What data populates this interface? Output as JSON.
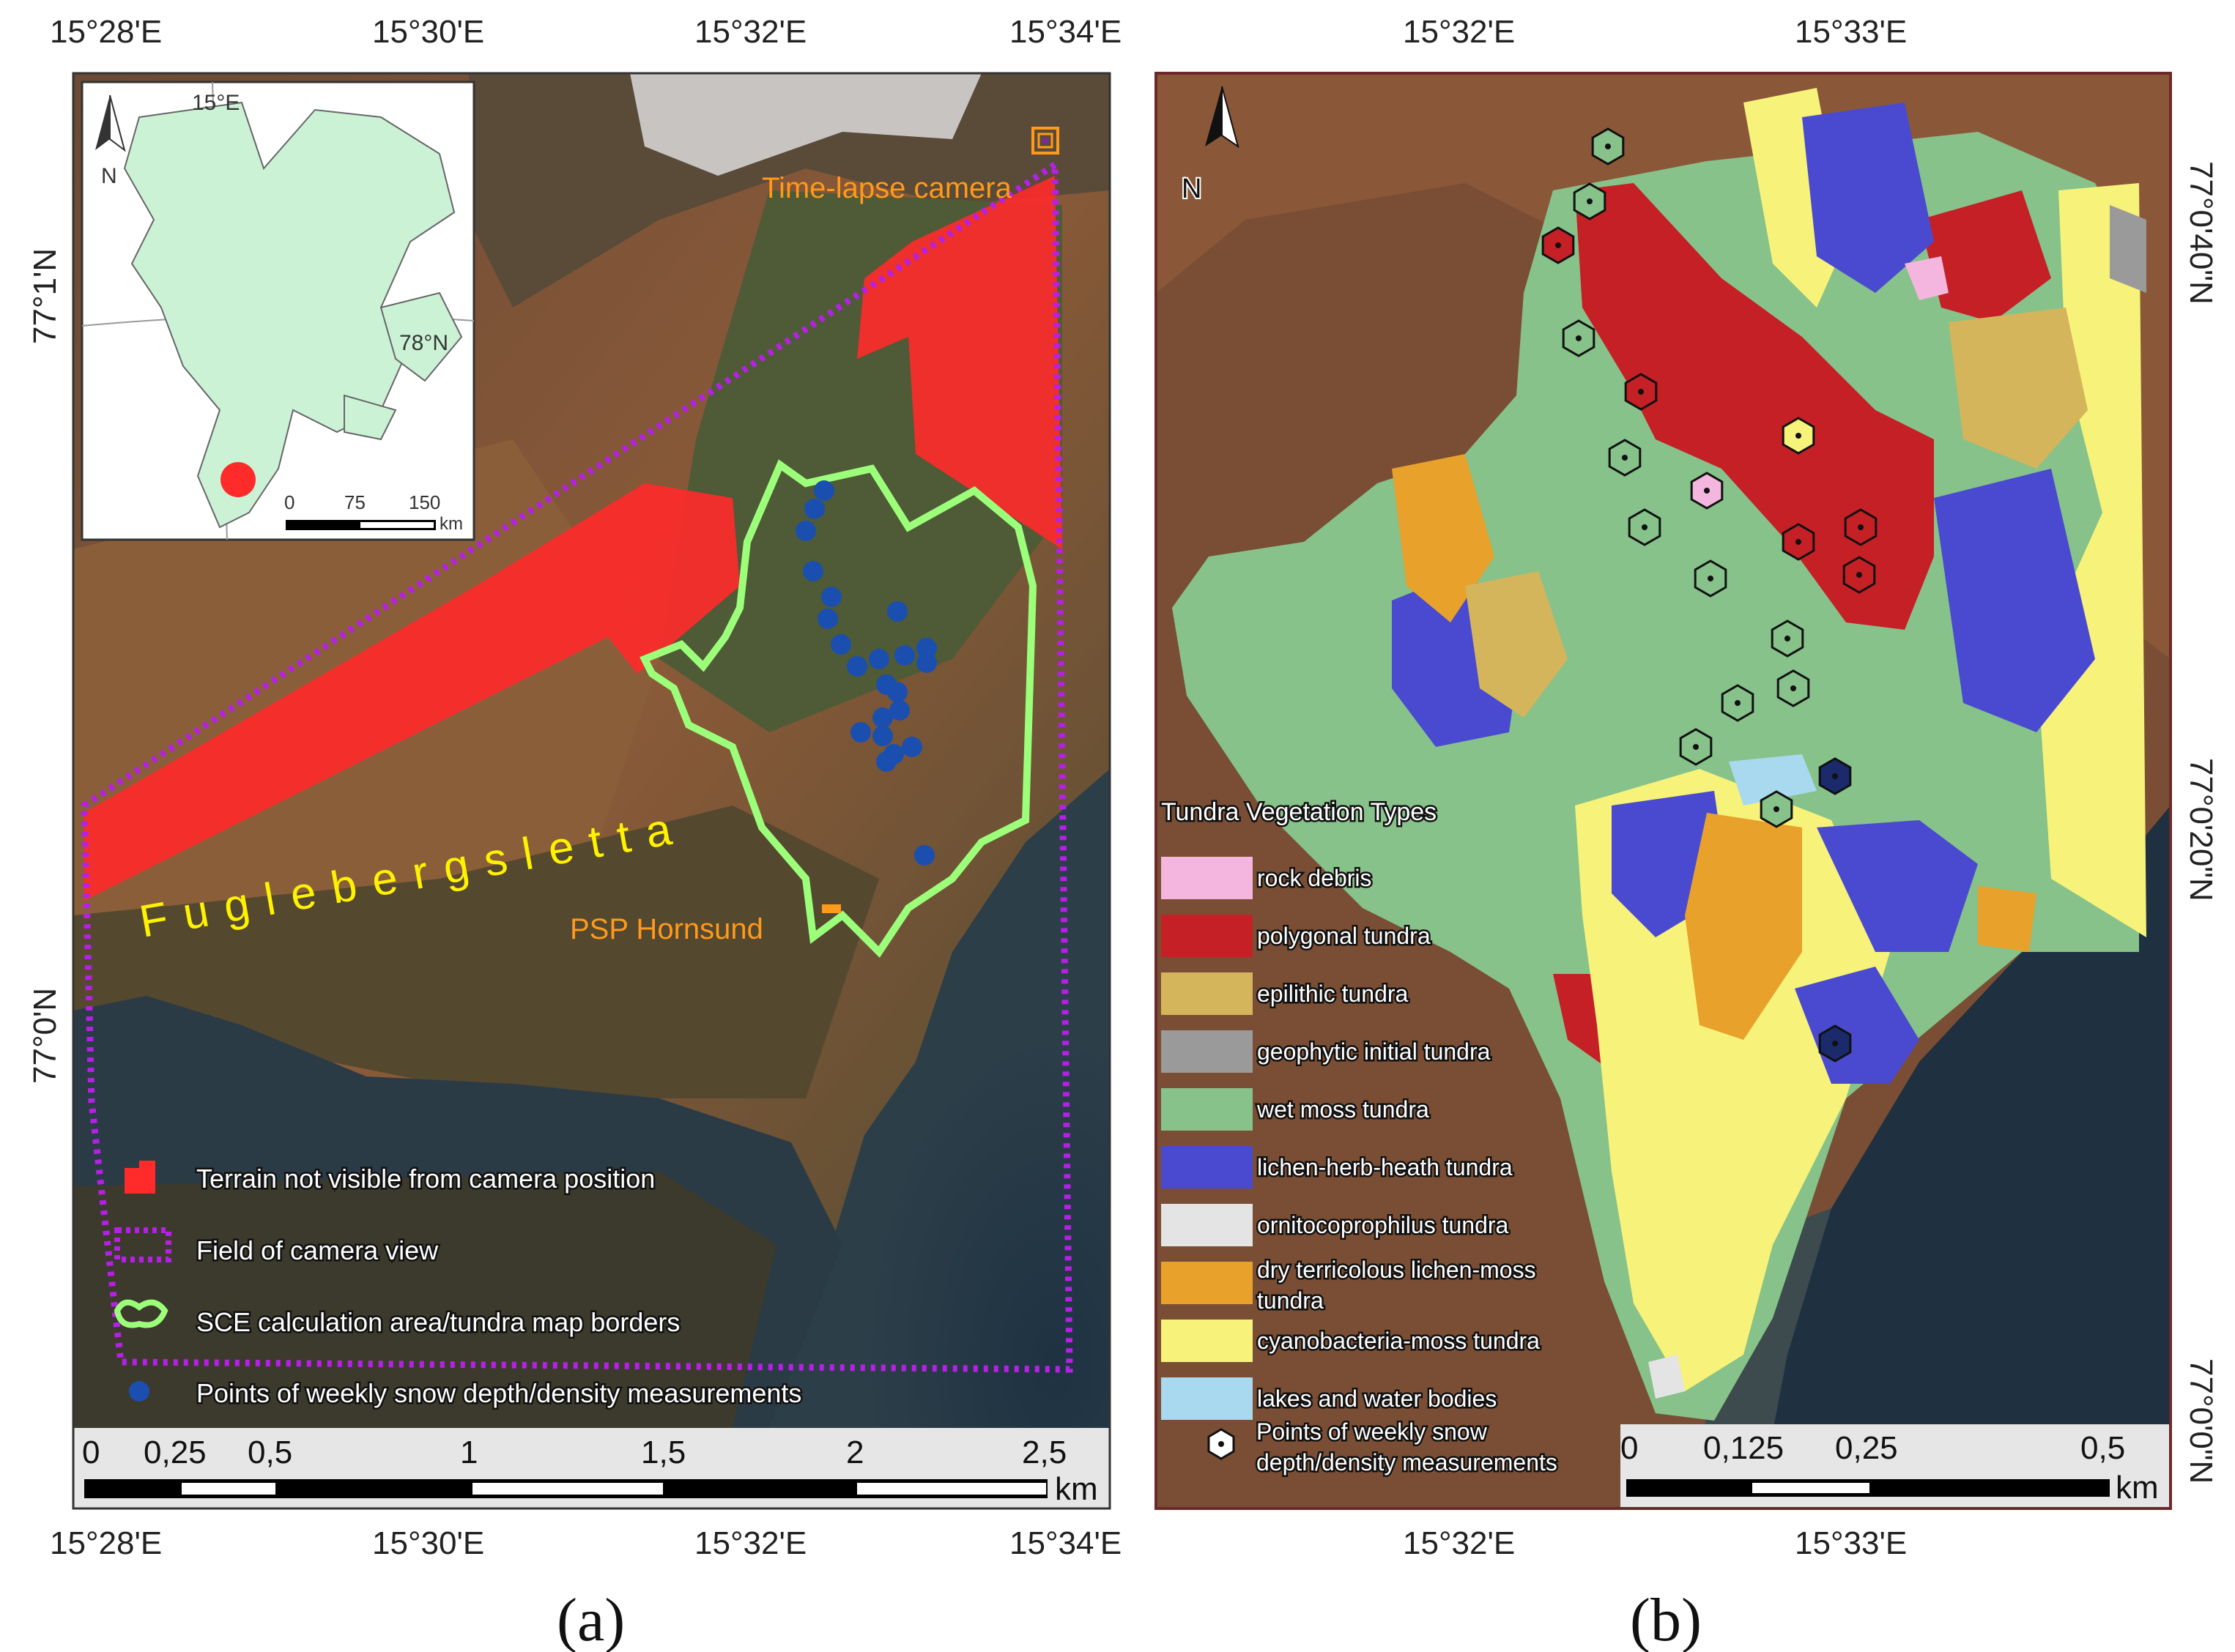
{
  "panel_a": {
    "caption": "(a)",
    "top_ticks": [
      "15°28'E",
      "15°30'E",
      "15°32'E",
      "15°34'E"
    ],
    "bottom_ticks": [
      "15°28'E",
      "15°30'E",
      "15°32'E",
      "15°34'E"
    ],
    "left_ticks": [
      "77°1'N",
      "77°0'N"
    ],
    "place_name": "Fuglebergsletta",
    "camera_label": "Time-lapse camera",
    "station_label": "PSP Hornsund",
    "inset": {
      "meridian_label": "15°E",
      "parallel_label": "78°N",
      "north_label": "N",
      "scale_labels": [
        "0",
        "75",
        "150"
      ],
      "scale_unit": "km"
    },
    "north_label": "N",
    "legend": [
      {
        "label": "Terrain not visible from camera position",
        "color": "#ff2a2a"
      },
      {
        "label": "Field of camera view",
        "color": "#b620e6"
      },
      {
        "label": "SCE calculation area/tundra map borders",
        "color": "#9cff7a"
      },
      {
        "label": "Points of weekly snow depth/density measurements",
        "color": "#1a4fb0"
      }
    ],
    "scale_labels": [
      "0",
      "0,25",
      "0,5",
      "1",
      "1,5",
      "2",
      "2,5"
    ],
    "scale_unit": "km"
  },
  "panel_b": {
    "caption": "(b)",
    "top_ticks": [
      "15°32'E",
      "15°33'E"
    ],
    "bottom_ticks": [
      "15°32'E",
      "15°33'E"
    ],
    "right_ticks": [
      "77°0'40\"N",
      "77°0'20\"N",
      "77°0'0\"N"
    ],
    "north_label": "N",
    "legend_title": "Tundra Vegetation Types",
    "legend": [
      {
        "label": "rock debris",
        "color": "#f4b6df"
      },
      {
        "label": "polygonal tundra",
        "color": "#c42026"
      },
      {
        "label": "epilithic tundra",
        "color": "#d4b55c"
      },
      {
        "label": "geophytic initial tundra",
        "color": "#9a9a9a"
      },
      {
        "label": "wet moss tundra",
        "color": "#86c28a"
      },
      {
        "label": "lichen-herb-heath tundra",
        "color": "#4a4ad0"
      },
      {
        "label": "ornitocoprophilus tundra",
        "color": "#e4e4e4"
      },
      {
        "label": "dry terricolous lichen-moss",
        "label2": "tundra",
        "color": "#e8a12a"
      },
      {
        "label": "cyanobacteria-moss tundra",
        "color": "#f7f27a"
      },
      {
        "label": "lakes and water bodies",
        "color": "#a9d9ee"
      }
    ],
    "points_label_1": "Points of weekly snow",
    "points_label_2": "depth/density measurements",
    "scale_labels": [
      "0",
      "0,125",
      "0,25",
      "0,5"
    ],
    "scale_unit": "km"
  },
  "colors": {
    "not_visible": "#ff2a2a",
    "field_of_view": "#b620e6",
    "sce_border": "#9cff7a",
    "snow_points": "#1a4fb0",
    "label_yellow": "#fff200",
    "label_orange": "#ff9a1a",
    "inset_land": "#ccf2d6"
  }
}
